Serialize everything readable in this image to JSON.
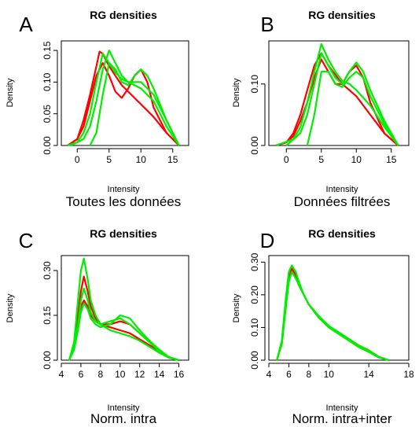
{
  "chart_data": [
    {
      "panel_letter": "A",
      "type": "line",
      "title": "RG densities",
      "xlabel": "Intensity",
      "ylabel": "Density",
      "caption": "Toutes les données",
      "xlim": [
        -2.5,
        17.5
      ],
      "ylim": [
        0,
        0.165
      ],
      "xticks": [
        "0",
        "5",
        "10",
        "15"
      ],
      "yticks": [
        "0.00",
        "0.05",
        "0.10",
        "0.15"
      ],
      "series": [
        {
          "color": "#ff0000",
          "x": [
            -1.5,
            0,
            1,
            2,
            3,
            3.5,
            4,
            5,
            6,
            7,
            8,
            9,
            10,
            12,
            14,
            16
          ],
          "y": [
            0,
            0.01,
            0.04,
            0.08,
            0.125,
            0.148,
            0.145,
            0.125,
            0.11,
            0.095,
            0.085,
            0.075,
            0.065,
            0.045,
            0.02,
            0
          ]
        },
        {
          "color": "#ff0000",
          "x": [
            -1.5,
            0,
            1,
            2,
            3,
            4,
            5,
            6,
            7,
            8,
            9,
            10,
            11,
            12,
            14,
            16
          ],
          "y": [
            0,
            0.01,
            0.03,
            0.07,
            0.11,
            0.13,
            0.11,
            0.085,
            0.075,
            0.09,
            0.11,
            0.12,
            0.1,
            0.06,
            0.02,
            0
          ]
        },
        {
          "color": "#00ee00",
          "x": [
            -1.5,
            0,
            1,
            2,
            3,
            4,
            5,
            6,
            7,
            8,
            9,
            10,
            12,
            14,
            16
          ],
          "y": [
            0,
            0.005,
            0.02,
            0.05,
            0.1,
            0.145,
            0.13,
            0.115,
            0.105,
            0.1,
            0.095,
            0.09,
            0.07,
            0.03,
            0
          ]
        },
        {
          "color": "#00ee00",
          "x": [
            -1,
            1,
            2,
            3,
            4,
            5,
            6,
            7,
            8,
            9,
            10,
            11,
            12,
            14,
            16
          ],
          "y": [
            0,
            0.01,
            0.03,
            0.07,
            0.12,
            0.15,
            0.13,
            0.11,
            0.1,
            0.1,
            0.1,
            0.09,
            0.08,
            0.04,
            0
          ]
        },
        {
          "color": "#00ee00",
          "x": [
            2,
            3,
            4,
            5,
            6,
            7,
            8,
            9,
            10,
            11,
            12,
            14,
            16
          ],
          "y": [
            0,
            0.02,
            0.08,
            0.13,
            0.12,
            0.1,
            0.095,
            0.11,
            0.12,
            0.11,
            0.09,
            0.04,
            0
          ]
        }
      ]
    },
    {
      "panel_letter": "B",
      "type": "line",
      "title": "RG densities",
      "xlabel": "Intensity",
      "ylabel": "Density",
      "caption": "Données filtrées",
      "xlim": [
        -2.5,
        17.5
      ],
      "ylim": [
        0,
        0.17
      ],
      "xticks": [
        "0",
        "5",
        "10",
        "15"
      ],
      "yticks": [
        "0.00",
        "0.10"
      ],
      "series": [
        {
          "color": "#ff0000",
          "x": [
            -1.5,
            0,
            1,
            2,
            3,
            4,
            5,
            6,
            7,
            8,
            9,
            10,
            12,
            14,
            16
          ],
          "y": [
            0,
            0.005,
            0.02,
            0.05,
            0.09,
            0.13,
            0.15,
            0.13,
            0.115,
            0.1,
            0.09,
            0.08,
            0.05,
            0.02,
            0
          ]
        },
        {
          "color": "#ff0000",
          "x": [
            -1.5,
            0,
            1,
            2,
            3,
            4,
            5,
            6,
            7,
            8,
            9,
            10,
            11,
            12,
            14,
            16
          ],
          "y": [
            0,
            0.005,
            0.015,
            0.04,
            0.07,
            0.11,
            0.14,
            0.12,
            0.1,
            0.1,
            0.12,
            0.13,
            0.11,
            0.07,
            0.02,
            0
          ]
        },
        {
          "color": "#00ee00",
          "x": [
            -1.5,
            1,
            2,
            3,
            4,
            5,
            6,
            7,
            8,
            9,
            10,
            12,
            14,
            16
          ],
          "y": [
            0,
            0.01,
            0.03,
            0.07,
            0.12,
            0.165,
            0.14,
            0.12,
            0.105,
            0.1,
            0.09,
            0.065,
            0.03,
            0
          ]
        },
        {
          "color": "#00ee00",
          "x": [
            0,
            2,
            3,
            4,
            5,
            6,
            7,
            8,
            9,
            10,
            11,
            12,
            14,
            16
          ],
          "y": [
            0,
            0.02,
            0.05,
            0.1,
            0.15,
            0.13,
            0.11,
            0.1,
            0.12,
            0.135,
            0.12,
            0.09,
            0.04,
            0
          ]
        },
        {
          "color": "#00ee00",
          "x": [
            3,
            4,
            5,
            6,
            7,
            8,
            9,
            10,
            11,
            12,
            14,
            16
          ],
          "y": [
            0,
            0.05,
            0.12,
            0.12,
            0.1,
            0.095,
            0.11,
            0.12,
            0.11,
            0.08,
            0.035,
            0
          ]
        }
      ]
    },
    {
      "panel_letter": "C",
      "type": "line",
      "title": "RG densities",
      "xlabel": "Intensity",
      "ylabel": "Density",
      "caption": "Norm. intra",
      "xlim": [
        4,
        17
      ],
      "ylim": [
        0,
        0.35
      ],
      "xticks": [
        "4",
        "6",
        "8",
        "10",
        "12",
        "14",
        "16"
      ],
      "yticks": [
        "0.00",
        "0.15",
        "0.30"
      ],
      "series": [
        {
          "color": "#ff0000",
          "x": [
            4.8,
            5.3,
            5.7,
            6,
            6.3,
            6.7,
            7,
            7.5,
            8,
            9,
            10,
            11,
            12,
            13,
            14,
            15,
            16
          ],
          "y": [
            0,
            0.05,
            0.15,
            0.23,
            0.28,
            0.23,
            0.18,
            0.14,
            0.12,
            0.11,
            0.1,
            0.09,
            0.07,
            0.05,
            0.03,
            0.01,
            0
          ]
        },
        {
          "color": "#ff0000",
          "x": [
            4.8,
            5.3,
            5.7,
            6,
            6.3,
            6.7,
            7,
            7.5,
            8,
            9,
            10,
            11,
            12,
            13,
            14,
            15,
            16
          ],
          "y": [
            0,
            0.04,
            0.12,
            0.18,
            0.2,
            0.18,
            0.15,
            0.13,
            0.12,
            0.12,
            0.13,
            0.12,
            0.09,
            0.06,
            0.035,
            0.01,
            0
          ]
        },
        {
          "color": "#00ee00",
          "x": [
            4.8,
            5.3,
            5.7,
            6,
            6.3,
            6.7,
            7,
            7.5,
            8,
            9,
            10,
            11,
            12,
            13,
            14,
            15,
            16
          ],
          "y": [
            0,
            0.06,
            0.2,
            0.3,
            0.34,
            0.27,
            0.2,
            0.15,
            0.12,
            0.1,
            0.09,
            0.08,
            0.065,
            0.045,
            0.025,
            0.008,
            0
          ]
        },
        {
          "color": "#00ee00",
          "x": [
            4.8,
            5.3,
            5.7,
            6,
            6.3,
            6.7,
            7,
            7.5,
            8,
            9,
            10,
            11,
            12,
            13,
            14,
            15,
            16
          ],
          "y": [
            0,
            0.04,
            0.12,
            0.2,
            0.24,
            0.2,
            0.16,
            0.13,
            0.12,
            0.13,
            0.14,
            0.12,
            0.09,
            0.06,
            0.03,
            0.01,
            0
          ]
        },
        {
          "color": "#00ee00",
          "x": [
            4.8,
            5.3,
            5.7,
            6,
            6.3,
            6.7,
            7,
            7.5,
            8,
            9,
            10,
            11,
            12,
            13,
            14,
            15,
            16
          ],
          "y": [
            0,
            0.035,
            0.1,
            0.16,
            0.19,
            0.17,
            0.14,
            0.12,
            0.11,
            0.12,
            0.15,
            0.14,
            0.1,
            0.065,
            0.035,
            0.01,
            0
          ]
        }
      ]
    },
    {
      "panel_letter": "D",
      "type": "line",
      "title": "RG densities",
      "xlabel": "Intensity",
      "ylabel": "Density",
      "caption": "Norm. intra+inter",
      "xlim": [
        4,
        18
      ],
      "ylim": [
        0,
        0.32
      ],
      "xticks": [
        "4",
        "6",
        "8",
        "10",
        "14",
        "18"
      ],
      "yticks": [
        "0.00",
        "0.10",
        "0.20",
        "0.30"
      ],
      "series": [
        {
          "color": "#ff0000",
          "x": [
            4.8,
            5.3,
            5.7,
            6,
            6.3,
            6.7,
            7,
            7.5,
            8,
            9,
            10,
            11,
            12,
            13,
            14,
            15,
            16
          ],
          "y": [
            0,
            0.05,
            0.17,
            0.25,
            0.28,
            0.26,
            0.23,
            0.2,
            0.17,
            0.13,
            0.1,
            0.085,
            0.065,
            0.045,
            0.03,
            0.01,
            0
          ]
        },
        {
          "color": "#00ee00",
          "x": [
            4.8,
            5.3,
            5.7,
            6,
            6.3,
            6.7,
            7,
            7.5,
            8,
            9,
            10,
            11,
            12,
            13,
            14,
            15,
            16
          ],
          "y": [
            0,
            0.06,
            0.19,
            0.27,
            0.29,
            0.27,
            0.24,
            0.2,
            0.17,
            0.13,
            0.1,
            0.08,
            0.06,
            0.04,
            0.025,
            0.008,
            0
          ]
        },
        {
          "color": "#00ee00",
          "x": [
            4.8,
            5.3,
            5.7,
            6,
            6.3,
            6.7,
            7,
            7.5,
            8,
            9,
            10,
            11,
            12,
            13,
            14,
            15,
            16
          ],
          "y": [
            0,
            0.05,
            0.16,
            0.24,
            0.27,
            0.25,
            0.23,
            0.2,
            0.17,
            0.135,
            0.105,
            0.085,
            0.065,
            0.045,
            0.03,
            0.01,
            0
          ]
        }
      ]
    }
  ]
}
